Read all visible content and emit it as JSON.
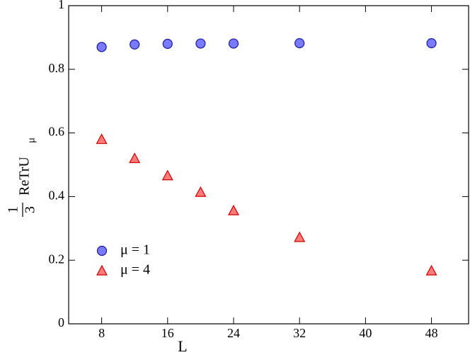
{
  "chart_data": {
    "type": "scatter",
    "x_label": "L",
    "y_label": {
      "numerator": "1",
      "denominator": "3",
      "text": "ReTrU",
      "subscript": "μ"
    },
    "xlim": [
      4,
      52.5
    ],
    "xticks": [
      8,
      16,
      24,
      32,
      40,
      48
    ],
    "ylim": [
      0,
      1
    ],
    "yticks": [
      0,
      0.2,
      0.4,
      0.6,
      0.8,
      1
    ],
    "legend": "lower left",
    "series": [
      {
        "name": "μ = 1",
        "color": "#7a7aff",
        "edge": "#1a1aa0",
        "marker": "circle",
        "x": [
          8,
          12,
          16,
          20,
          24,
          32,
          48
        ],
        "values": [
          0.87,
          0.878,
          0.88,
          0.881,
          0.881,
          0.882,
          0.882
        ]
      },
      {
        "name": "μ = 4",
        "color": "#ff7a7a",
        "edge": "#cc0000",
        "marker": "triangle",
        "x": [
          8,
          12,
          16,
          20,
          24,
          32,
          48
        ],
        "values": [
          0.58,
          0.52,
          0.466,
          0.414,
          0.356,
          0.272,
          0.167
        ]
      }
    ]
  }
}
